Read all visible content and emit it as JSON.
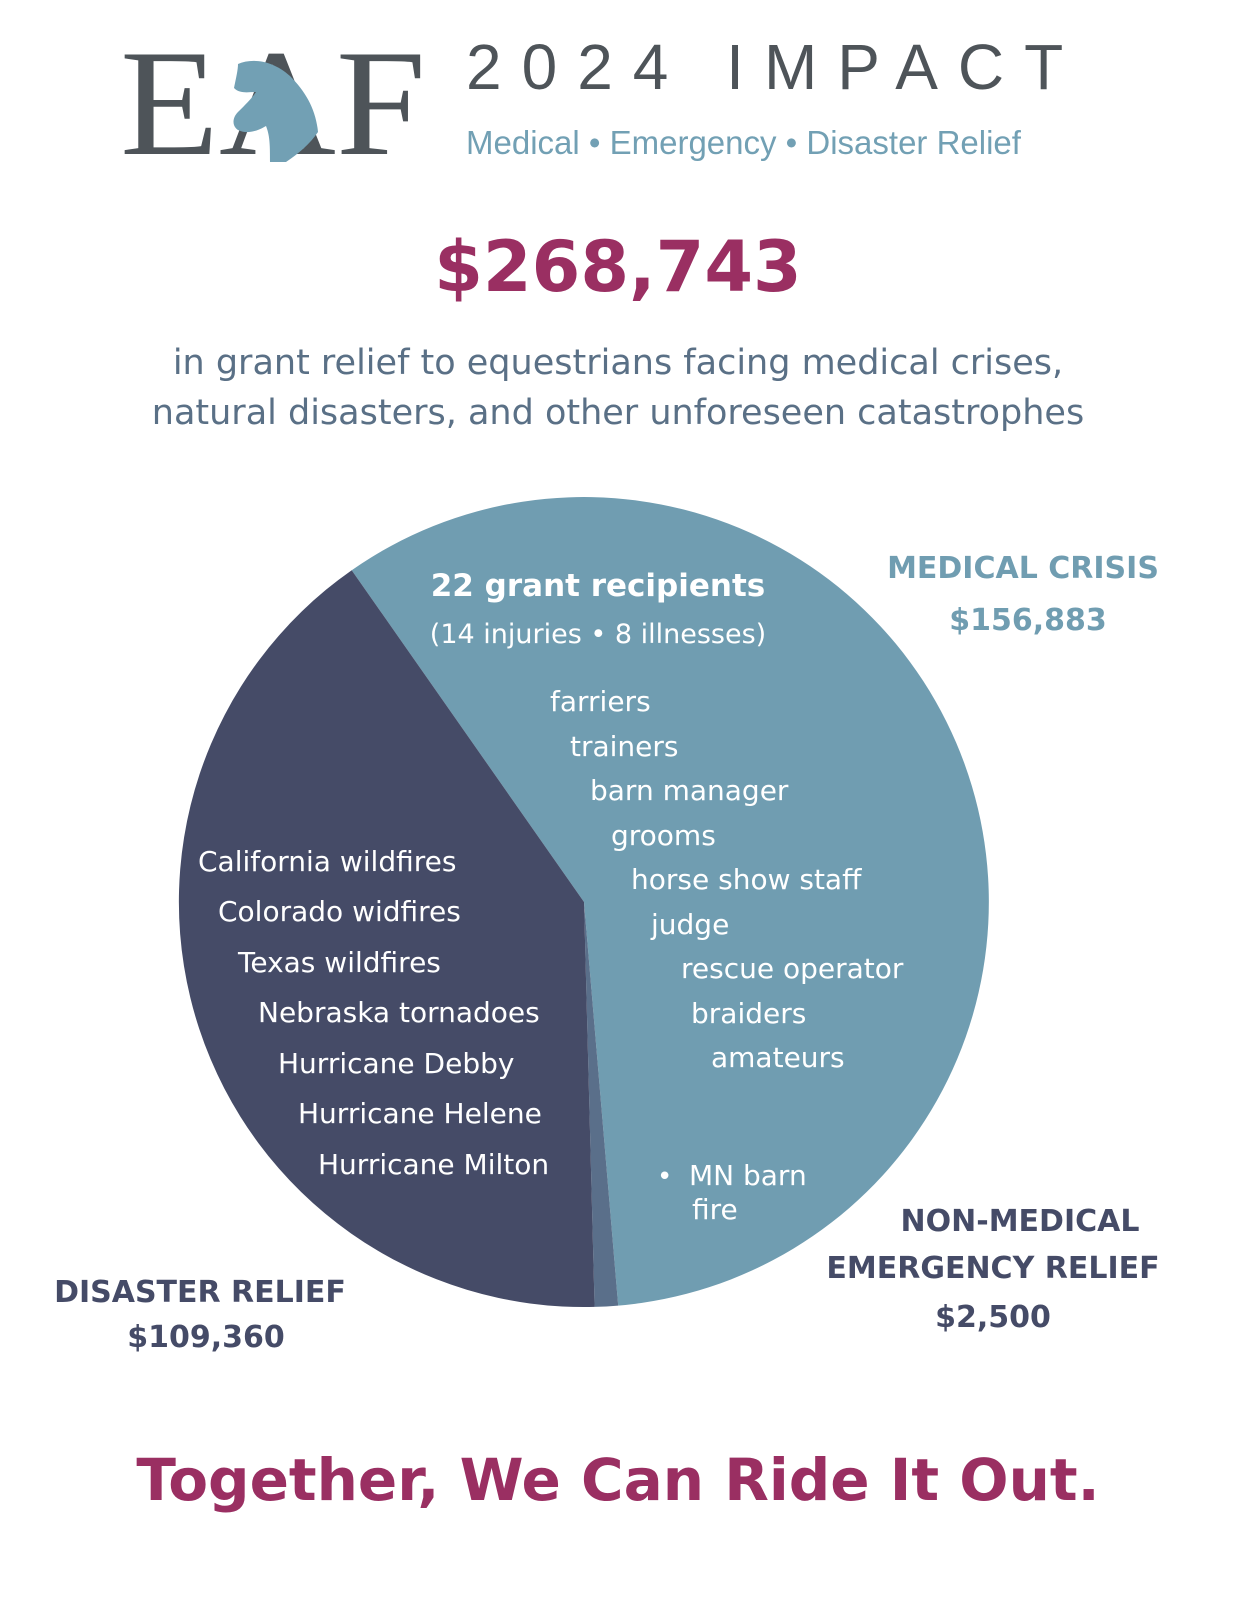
{
  "header": {
    "logo_text": "EAF",
    "title": "2024 IMPACT",
    "subtitle": "Medical • Emergency • Disaster Relief"
  },
  "summary": {
    "total": "$268,743",
    "tagline_line1": "in grant relief to equestrians facing medical crises,",
    "tagline_line2": "natural disasters, and other unforeseen catastrophes"
  },
  "colors": {
    "medical": "#709db1",
    "disaster": "#454b67",
    "non_medical": "#5a6f8a",
    "accent": "#9a2f62"
  },
  "chart_data": {
    "type": "pie",
    "title": "",
    "categories": [
      "MEDICAL CRISIS",
      "NON-MEDICAL EMERGENCY RELIEF",
      "DISASTER RELIEF"
    ],
    "values": [
      156883,
      2500,
      109360
    ],
    "value_labels": [
      "$156,883",
      "$2,500",
      "$109,360"
    ],
    "medical_details": {
      "heading": "22 grant recipients",
      "subheading": "(14 injuries •  8 illnesses)",
      "roles": [
        "farriers",
        "trainers",
        "barn manager",
        "grooms",
        "horse show staff",
        "judge",
        "rescue operator",
        "braiders",
        "amateurs"
      ]
    },
    "non_medical_details": [
      "•",
      "MN barn",
      "fire"
    ],
    "disaster_details": [
      "California wildfires",
      "Colorado widfires",
      "Texas wildfires",
      "Nebraska tornadoes",
      "Hurricane Debby",
      "Hurricane Helene",
      "Hurricane Milton"
    ]
  },
  "footer": {
    "closing": "Together, We Can Ride It Out."
  }
}
